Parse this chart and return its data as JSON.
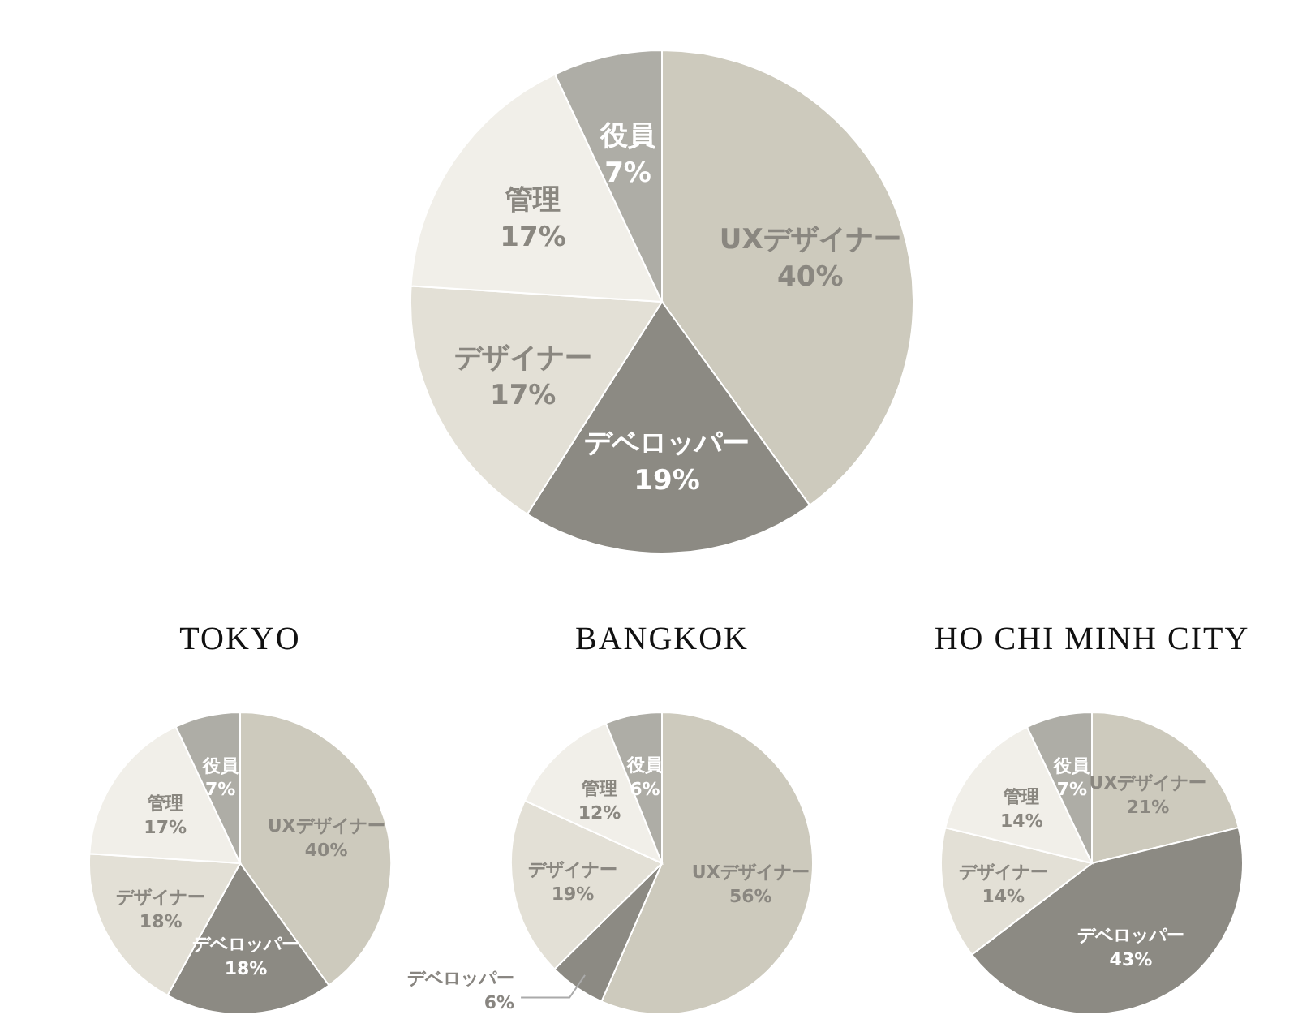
{
  "chart_data": [
    {
      "type": "pie",
      "categories": [
        "UXデザイナー",
        "デベロッパー",
        "デザイナー",
        "管理",
        "役員"
      ],
      "values": [
        40,
        19,
        17,
        17,
        7
      ],
      "colors": [
        "#cdcabd",
        "#8c8a83",
        "#e3e0d6",
        "#f1efe9",
        "#aeada6"
      ],
      "value_labels": [
        "40%",
        "19%",
        "17%",
        "17%",
        "7%"
      ]
    },
    {
      "type": "pie",
      "title": "TOKYO",
      "categories": [
        "UXデザイナー",
        "デベロッパー",
        "デザイナー",
        "管理",
        "役員"
      ],
      "values": [
        40,
        18,
        18,
        17,
        7
      ],
      "colors": [
        "#cdcabd",
        "#8c8a83",
        "#e3e0d6",
        "#f1efe9",
        "#aeada6"
      ],
      "value_labels": [
        "40%",
        "18%",
        "18%",
        "17%",
        "7%"
      ]
    },
    {
      "type": "pie",
      "title": "BANGKOK",
      "categories": [
        "UXデザイナー",
        "デベロッパー",
        "デザイナー",
        "管理",
        "役員"
      ],
      "values": [
        56,
        6,
        19,
        12,
        6
      ],
      "colors": [
        "#cdcabd",
        "#8c8a83",
        "#e3e0d6",
        "#f1efe9",
        "#aeada6"
      ],
      "value_labels": [
        "56%",
        "6%",
        "19%",
        "12%",
        "6%"
      ]
    },
    {
      "type": "pie",
      "title": "HO CHI MINH CITY",
      "categories": [
        "UXデザイナー",
        "デベロッパー",
        "デザイナー",
        "管理",
        "役員"
      ],
      "values": [
        21,
        43,
        14,
        14,
        7
      ],
      "colors": [
        "#cdcabd",
        "#8c8a83",
        "#e3e0d6",
        "#f1efe9",
        "#aeada6"
      ],
      "value_labels": [
        "21%",
        "43%",
        "14%",
        "14%",
        "7%"
      ]
    }
  ]
}
